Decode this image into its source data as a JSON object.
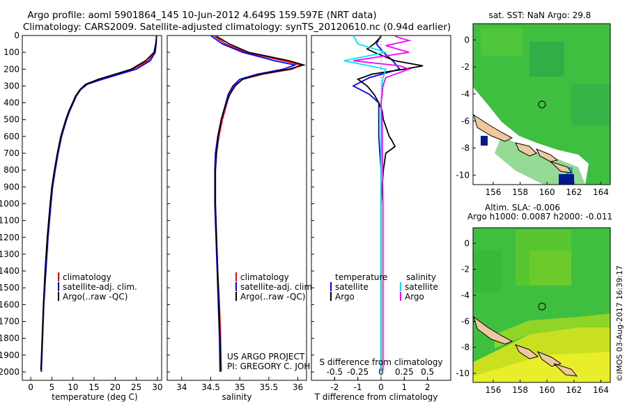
{
  "header": {
    "title1": "Argo profile: aoml 5901864_145 10-Jun-2012 4.649S 159.597E (NRT data)",
    "title2": "Climatology: CARS2009. Satellite-adjusted climatology: synTS_20120610.nc (0.94d earlier)"
  },
  "colors": {
    "climatology": "#ff0000",
    "satellite": "#0000ff",
    "argo": "#000000",
    "sal_satellite": "#00e5ff",
    "sal_argo": "#ff00ff"
  },
  "legend_labels": {
    "climatology": "climatology",
    "satellite": "satellite-adj. clim.",
    "argo": "Argo(..raw -QC)"
  },
  "diff_legend": {
    "temperature": "temperature",
    "salinity": "salinity",
    "satellite": "satellite",
    "argo": "Argo"
  },
  "credit": {
    "line1": "US ARGO PROJECT",
    "line2": "PI: GREGORY C. JOHNSON"
  },
  "sst_map": {
    "title": "sat. SST: NaN Argo: 29.8",
    "x_ticks": [
      "156",
      "158",
      "160",
      "162",
      "164"
    ],
    "y_ticks": [
      "0",
      "-2",
      "-4",
      "-6",
      "-8",
      "-10"
    ]
  },
  "ssh_map": {
    "title1": "Altim. SLA: -0.006",
    "title2": "Argo h1000: 0.0087 h2000: -0.011",
    "x_ticks": [
      "156",
      "158",
      "160",
      "162",
      "164"
    ],
    "y_ticks": [
      "0",
      "-2",
      "-4",
      "-6",
      "-8",
      "-10"
    ]
  },
  "stamp": "©IMOS 03-Aug-2017 16:39:17",
  "chart_data": [
    {
      "type": "line",
      "title": "",
      "xlabel": "temperature (deg C)",
      "ylabel": "",
      "xlim": [
        -2,
        31
      ],
      "ylim": [
        2050,
        0
      ],
      "x_ticks": [
        "0",
        "5",
        "10",
        "15",
        "20",
        "25",
        "30"
      ],
      "y_ticks": [
        "0",
        "100",
        "200",
        "300",
        "400",
        "500",
        "600",
        "700",
        "800",
        "900",
        "1000",
        "1100",
        "1200",
        "1300",
        "1400",
        "1500",
        "1600",
        "1700",
        "1800",
        "1900",
        "2000"
      ],
      "series": [
        {
          "name": "climatology",
          "depth": [
            0,
            50,
            100,
            150,
            200,
            230,
            260,
            290,
            320,
            360,
            400,
            450,
            500,
            600,
            700,
            800,
            900,
            1000,
            1200,
            1400,
            1600,
            1800,
            2000
          ],
          "values": [
            29.8,
            29.7,
            29.4,
            27.8,
            24.2,
            20.5,
            16.5,
            13.2,
            11.8,
            10.7,
            10.0,
            9.1,
            8.4,
            7.2,
            6.4,
            5.7,
            5.1,
            4.7,
            4.0,
            3.5,
            3.1,
            2.8,
            2.5
          ]
        },
        {
          "name": "satellite-adj. clim.",
          "depth": [
            0,
            50,
            100,
            150,
            200,
            230,
            260,
            290,
            320,
            360,
            400,
            450,
            500,
            600,
            700,
            800,
            900,
            1000,
            1200,
            1400,
            1600,
            1800,
            2000
          ],
          "values": [
            29.8,
            29.7,
            29.5,
            28.3,
            25.0,
            21.0,
            17.0,
            13.4,
            11.9,
            10.8,
            10.1,
            9.2,
            8.5,
            7.3,
            6.5,
            5.8,
            5.2,
            4.8,
            4.1,
            3.6,
            3.1,
            2.8,
            2.5
          ]
        },
        {
          "name": "Argo(..raw -QC)",
          "depth": [
            5,
            50,
            100,
            150,
            200,
            230,
            260,
            290,
            320,
            360,
            400,
            450,
            500,
            600,
            700,
            800,
            900,
            1000,
            1200,
            1400,
            1600,
            1800,
            1990
          ],
          "values": [
            29.8,
            29.6,
            29.2,
            27.2,
            23.8,
            20.0,
            16.0,
            13.0,
            11.7,
            10.6,
            9.9,
            9.0,
            8.3,
            7.1,
            6.3,
            5.6,
            5.0,
            4.6,
            3.9,
            3.4,
            3.0,
            2.7,
            2.4
          ]
        }
      ]
    },
    {
      "type": "line",
      "title": "",
      "xlabel": "salinity",
      "ylabel": "",
      "xlim": [
        33.75,
        36.15
      ],
      "ylim": [
        2050,
        0
      ],
      "x_ticks": [
        "34",
        "34.5",
        "35",
        "35.5",
        "36"
      ],
      "series": [
        {
          "name": "climatology",
          "depth": [
            0,
            50,
            100,
            150,
            175,
            200,
            230,
            260,
            300,
            350,
            400,
            500,
            600,
            700,
            800,
            1000,
            1200,
            1400,
            1600,
            1800,
            2000
          ],
          "values": [
            34.55,
            34.75,
            35.1,
            35.75,
            36.05,
            35.9,
            35.4,
            35.05,
            34.9,
            34.82,
            34.78,
            34.7,
            34.64,
            34.6,
            34.58,
            34.58,
            34.6,
            34.62,
            34.65,
            34.67,
            34.68
          ]
        },
        {
          "name": "satellite-adj. clim.",
          "depth": [
            0,
            50,
            100,
            150,
            175,
            200,
            230,
            260,
            300,
            350,
            400,
            500,
            600,
            700,
            800,
            1000,
            1200,
            1400,
            1600,
            1800,
            2000
          ],
          "values": [
            34.5,
            34.7,
            35.05,
            35.6,
            35.95,
            35.75,
            35.3,
            35.0,
            34.88,
            34.8,
            34.76,
            34.68,
            34.62,
            34.58,
            34.57,
            34.57,
            34.59,
            34.61,
            34.63,
            34.65,
            34.66
          ]
        },
        {
          "name": "Argo(..raw -QC)",
          "depth": [
            5,
            50,
            100,
            150,
            175,
            200,
            230,
            260,
            300,
            350,
            400,
            500,
            600,
            700,
            800,
            1000,
            1200,
            1400,
            1600,
            1800,
            1990
          ],
          "values": [
            34.6,
            34.82,
            35.15,
            35.85,
            36.1,
            35.85,
            35.35,
            35.05,
            34.92,
            34.83,
            34.77,
            34.68,
            34.63,
            34.6,
            34.58,
            34.58,
            34.6,
            34.62,
            34.64,
            34.66,
            34.67
          ]
        }
      ]
    },
    {
      "type": "line",
      "title": "",
      "xlabel": "T difference from climatology",
      "x2label": "S difference from climatology",
      "xlim": [
        -3,
        3
      ],
      "x2lim": [
        -0.75,
        0.75
      ],
      "ylim": [
        2050,
        0
      ],
      "x_ticks": [
        "-2",
        "-1",
        "0",
        "1",
        "2"
      ],
      "x2_ticks": [
        "-0.5",
        "-0.25",
        "0",
        "0.25",
        "0.5"
      ],
      "series": [
        {
          "name": "temperature satellite",
          "depth": [
            0,
            50,
            100,
            150,
            200,
            250,
            300,
            350,
            400,
            500,
            600,
            700,
            800,
            1000,
            1500,
            2000
          ],
          "values": [
            0,
            -0.2,
            0.1,
            0.5,
            0.8,
            -0.5,
            -1.2,
            -0.5,
            -0.1,
            -0.1,
            -0.1,
            -0.05,
            0,
            0,
            0,
            0
          ]
        },
        {
          "name": "temperature Argo",
          "depth": [
            5,
            50,
            80,
            100,
            150,
            180,
            200,
            230,
            260,
            300,
            350,
            400,
            450,
            500,
            600,
            620,
            660,
            700,
            800,
            1000,
            1500,
            1990
          ],
          "values": [
            0,
            -0.3,
            -0.6,
            -0.3,
            0.6,
            1.8,
            1.0,
            -0.4,
            -1.0,
            -0.6,
            -0.3,
            -0.1,
            0.05,
            0.1,
            0.35,
            0.45,
            0.6,
            0.2,
            0.1,
            0,
            0,
            0
          ]
        },
        {
          "name": "salinity satellite",
          "depth": [
            0,
            50,
            100,
            150,
            200,
            250,
            300,
            350,
            400,
            500,
            1000,
            1500,
            2000
          ],
          "values": [
            -0.3,
            -0.25,
            0.05,
            -0.4,
            0.05,
            0.02,
            0.01,
            0.01,
            0.0,
            0.0,
            0.0,
            0.0,
            0.0
          ]
        },
        {
          "name": "salinity Argo",
          "depth": [
            5,
            30,
            60,
            100,
            150,
            180,
            200,
            250,
            300,
            400,
            500,
            1000,
            1500,
            1990
          ],
          "values": [
            0.15,
            0.3,
            0.05,
            0.3,
            -0.3,
            0.2,
            0.3,
            0.05,
            0.02,
            0.0,
            0.01,
            0.02,
            0.02,
            0.02
          ]
        }
      ]
    }
  ]
}
